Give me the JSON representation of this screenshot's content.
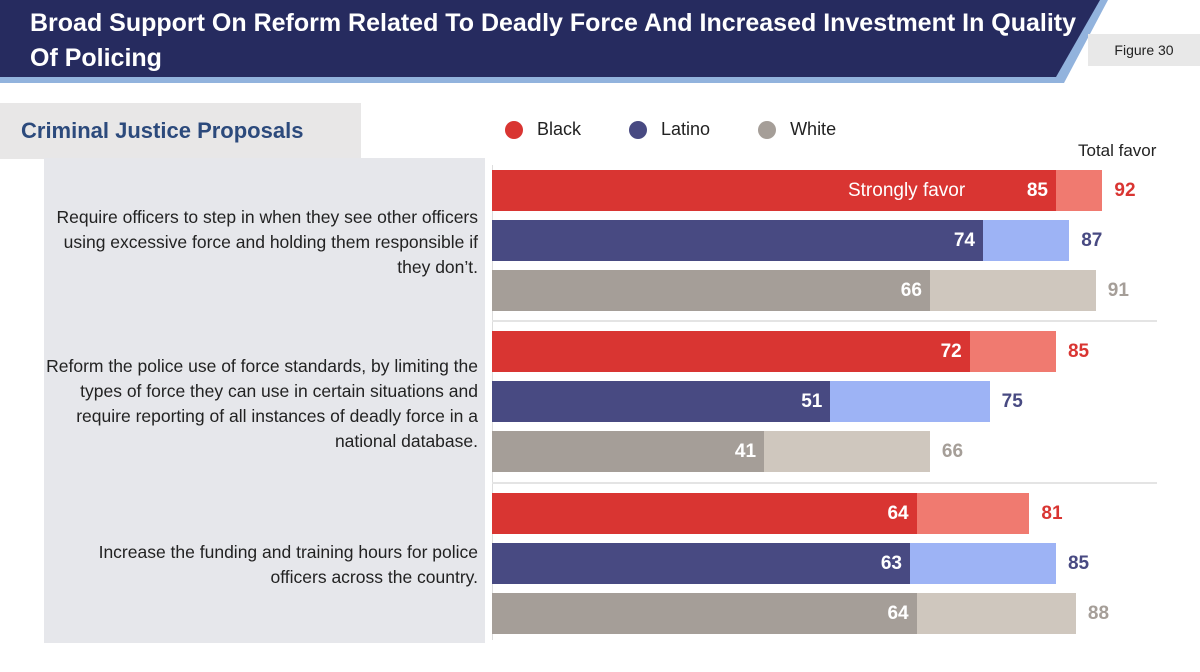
{
  "header": {
    "title": "Broad Support On Reform Related To Deadly Force And Increased Investment In Quality Of Policing",
    "figure": "Figure 30"
  },
  "section_title": "Criminal Justice Proposals",
  "chart_data": {
    "type": "bar",
    "stacked": "overlay",
    "legend": [
      {
        "name": "Black",
        "color": "#d93532",
        "light": "#f07a70",
        "text": "#d93532"
      },
      {
        "name": "Latino",
        "color": "#484a82",
        "light": "#9db3f5",
        "text": "#484a82"
      },
      {
        "name": "White",
        "color": "#a59e98",
        "light": "#cfc7be",
        "text": "#a59e98"
      }
    ],
    "total_label": "Total favor",
    "inner_label": "Strongly favor",
    "xlim": [
      0,
      100
    ],
    "categories": [
      "Require officers to step in when they see other officers using excessive force and holding them responsible if they don’t.",
      "Reform the police use of force standards, by limiting the types of force they can use in certain situations and require reporting of all instances of deadly force in a national database.",
      "Increase the funding and training hours for police officers across the country."
    ],
    "series": [
      {
        "name": "Black",
        "strongly_favor": [
          85,
          72,
          64
        ],
        "total_favor": [
          92,
          85,
          81
        ]
      },
      {
        "name": "Latino",
        "strongly_favor": [
          74,
          51,
          63
        ],
        "total_favor": [
          87,
          75,
          85
        ]
      },
      {
        "name": "White",
        "strongly_favor": [
          66,
          41,
          64
        ],
        "total_favor": [
          91,
          66,
          88
        ]
      }
    ]
  }
}
